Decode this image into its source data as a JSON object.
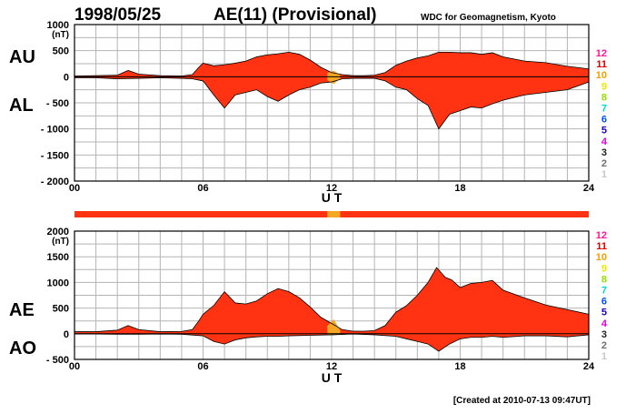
{
  "header": {
    "date": "1998/05/25",
    "title": "AE(11) (Provisional)",
    "source": "WDC for Geomagnetism, Kyoto"
  },
  "footer": {
    "created": "[Created at 2010-07-13 09:47UT]"
  },
  "colors": {
    "fill": "#ff3311",
    "fill_provisional": "#f5a623",
    "grid": "#b4b4b4",
    "text": "#000000"
  },
  "station_count_legend": [
    {
      "label": "12",
      "color": "#ff1493"
    },
    {
      "label": "11",
      "color": "#e00000"
    },
    {
      "label": "10",
      "color": "#f0a000"
    },
    {
      "label": "9",
      "color": "#e8e800"
    },
    {
      "label": "8",
      "color": "#90e000"
    },
    {
      "label": "7",
      "color": "#00d8d8"
    },
    {
      "label": "6",
      "color": "#0050ff"
    },
    {
      "label": "5",
      "color": "#2000c0"
    },
    {
      "label": "4",
      "color": "#e000e0"
    },
    {
      "label": "3",
      "color": "#202020"
    },
    {
      "label": "2",
      "color": "#707070"
    },
    {
      "label": "1",
      "color": "#c8c8c8"
    }
  ],
  "chart_data": [
    {
      "type": "area",
      "panel": "top",
      "upper_label": "AU",
      "lower_label": "AL",
      "unit": "(nT)",
      "xlabel": "U T",
      "xlim": [
        0,
        24
      ],
      "ylim": [
        -2000,
        1000
      ],
      "x_ticks": [
        "00",
        "06",
        "12",
        "18",
        "24"
      ],
      "y_ticks": [
        "1000",
        "500",
        "0",
        "- 500",
        "- 1000",
        "- 1500",
        "- 2000"
      ],
      "y_tick_values": [
        1000,
        500,
        0,
        -500,
        -1000,
        -1500,
        -2000
      ],
      "grid": true,
      "orange_range": [
        11.8,
        12.4
      ],
      "upper_series": [
        [
          0,
          15
        ],
        [
          1,
          20
        ],
        [
          2,
          30
        ],
        [
          2.5,
          120
        ],
        [
          3,
          50
        ],
        [
          4,
          20
        ],
        [
          5,
          15
        ],
        [
          5.5,
          40
        ],
        [
          5.8,
          180
        ],
        [
          6,
          260
        ],
        [
          6.5,
          210
        ],
        [
          7,
          230
        ],
        [
          7.5,
          260
        ],
        [
          8,
          300
        ],
        [
          8.5,
          380
        ],
        [
          9,
          420
        ],
        [
          9.5,
          440
        ],
        [
          10,
          470
        ],
        [
          10.5,
          430
        ],
        [
          11,
          320
        ],
        [
          11.5,
          180
        ],
        [
          12,
          80
        ],
        [
          12.5,
          40
        ],
        [
          13,
          20
        ],
        [
          13.5,
          20
        ],
        [
          14,
          30
        ],
        [
          14.5,
          80
        ],
        [
          15,
          220
        ],
        [
          15.5,
          300
        ],
        [
          16,
          360
        ],
        [
          16.5,
          400
        ],
        [
          17,
          470
        ],
        [
          17.5,
          470
        ],
        [
          18,
          460
        ],
        [
          18.5,
          460
        ],
        [
          19,
          430
        ],
        [
          19.5,
          460
        ],
        [
          20,
          380
        ],
        [
          21,
          300
        ],
        [
          22,
          270
        ],
        [
          23,
          200
        ],
        [
          24,
          150
        ]
      ],
      "lower_series": [
        [
          0,
          -20
        ],
        [
          1,
          -20
        ],
        [
          2,
          -40
        ],
        [
          3,
          -30
        ],
        [
          4,
          -20
        ],
        [
          5,
          -30
        ],
        [
          5.5,
          -40
        ],
        [
          6,
          -80
        ],
        [
          6.5,
          -350
        ],
        [
          7,
          -600
        ],
        [
          7.5,
          -350
        ],
        [
          8,
          -300
        ],
        [
          8.5,
          -250
        ],
        [
          9,
          -380
        ],
        [
          9.5,
          -470
        ],
        [
          10,
          -350
        ],
        [
          10.5,
          -250
        ],
        [
          11,
          -200
        ],
        [
          11.5,
          -120
        ],
        [
          12,
          -100
        ],
        [
          12.5,
          -40
        ],
        [
          13,
          -30
        ],
        [
          13.5,
          -30
        ],
        [
          14,
          -30
        ],
        [
          14.5,
          -80
        ],
        [
          15,
          -200
        ],
        [
          15.5,
          -250
        ],
        [
          16,
          -420
        ],
        [
          16.5,
          -550
        ],
        [
          17,
          -1000
        ],
        [
          17.5,
          -720
        ],
        [
          18,
          -650
        ],
        [
          18.5,
          -580
        ],
        [
          19,
          -600
        ],
        [
          19.5,
          -520
        ],
        [
          20,
          -450
        ],
        [
          21,
          -350
        ],
        [
          22,
          -300
        ],
        [
          23,
          -250
        ],
        [
          24,
          -100
        ]
      ]
    },
    {
      "type": "area",
      "panel": "bottom",
      "upper_label": "AE",
      "lower_label": "AO",
      "unit": "(nT)",
      "xlabel": "U T",
      "xlim": [
        0,
        24
      ],
      "ylim": [
        -500,
        2000
      ],
      "x_ticks": [
        "00",
        "06",
        "12",
        "18",
        "24"
      ],
      "y_ticks": [
        "2000",
        "1500",
        "1000",
        "500",
        "0",
        "- 500"
      ],
      "y_tick_values": [
        2000,
        1500,
        1000,
        500,
        0,
        -500
      ],
      "grid": true,
      "orange_range": [
        11.8,
        12.4
      ],
      "upper_series": [
        [
          0,
          40
        ],
        [
          1,
          40
        ],
        [
          2,
          70
        ],
        [
          2.5,
          160
        ],
        [
          3,
          80
        ],
        [
          4,
          40
        ],
        [
          5,
          45
        ],
        [
          5.5,
          80
        ],
        [
          5.8,
          250
        ],
        [
          6,
          380
        ],
        [
          6.5,
          550
        ],
        [
          7,
          820
        ],
        [
          7.5,
          600
        ],
        [
          8,
          580
        ],
        [
          8.5,
          640
        ],
        [
          9,
          780
        ],
        [
          9.5,
          880
        ],
        [
          10,
          820
        ],
        [
          10.5,
          700
        ],
        [
          11,
          520
        ],
        [
          11.5,
          320
        ],
        [
          12,
          200
        ],
        [
          12.5,
          80
        ],
        [
          13,
          50
        ],
        [
          13.5,
          50
        ],
        [
          14,
          60
        ],
        [
          14.5,
          160
        ],
        [
          15,
          420
        ],
        [
          15.5,
          550
        ],
        [
          16,
          750
        ],
        [
          16.5,
          1000
        ],
        [
          16.9,
          1290
        ],
        [
          17.3,
          1100
        ],
        [
          17.6,
          1050
        ],
        [
          18,
          900
        ],
        [
          18.5,
          980
        ],
        [
          19,
          1000
        ],
        [
          19.5,
          1040
        ],
        [
          20,
          850
        ],
        [
          21,
          700
        ],
        [
          22,
          560
        ],
        [
          23,
          470
        ],
        [
          24,
          380
        ]
      ],
      "lower_series": [
        [
          0,
          -5
        ],
        [
          1,
          -5
        ],
        [
          2,
          -10
        ],
        [
          3,
          -10
        ],
        [
          4,
          -5
        ],
        [
          5,
          -10
        ],
        [
          6,
          -40
        ],
        [
          6.5,
          -150
        ],
        [
          7,
          -200
        ],
        [
          7.5,
          -120
        ],
        [
          8,
          -80
        ],
        [
          8.5,
          -60
        ],
        [
          9,
          -50
        ],
        [
          9.5,
          -50
        ],
        [
          10,
          -40
        ],
        [
          11,
          -30
        ],
        [
          12,
          -20
        ],
        [
          13,
          -5
        ],
        [
          14,
          -20
        ],
        [
          15,
          -50
        ],
        [
          15.5,
          -100
        ],
        [
          16,
          -150
        ],
        [
          16.5,
          -200
        ],
        [
          17,
          -340
        ],
        [
          17.5,
          -200
        ],
        [
          18,
          -100
        ],
        [
          18.5,
          -70
        ],
        [
          19,
          -70
        ],
        [
          19.5,
          -50
        ],
        [
          20,
          -70
        ],
        [
          21,
          -40
        ],
        [
          22,
          -40
        ],
        [
          23,
          -60
        ],
        [
          24,
          -20
        ]
      ]
    }
  ]
}
